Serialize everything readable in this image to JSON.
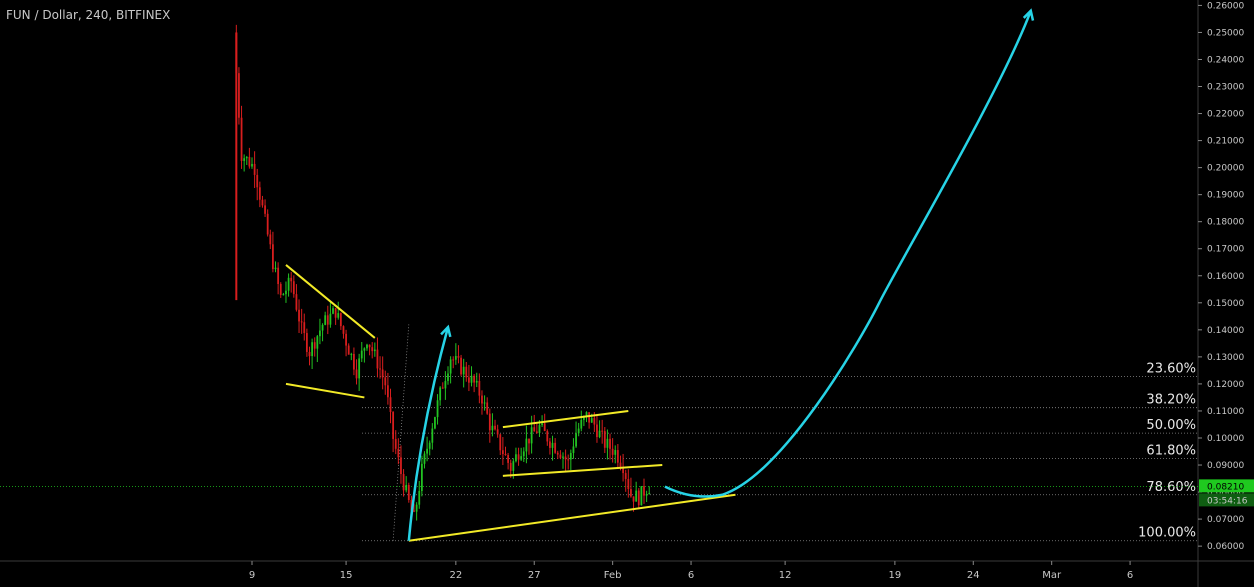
{
  "header": {
    "title": "FUN / Dollar, 240, BITFINEX"
  },
  "colors": {
    "background": "#000000",
    "up": "#22c322",
    "down": "#d81e1e",
    "trendline": "#f2ea27",
    "projection": "#27d3e6",
    "current_price": "#1fc91f",
    "fib": "#8a8a8a",
    "axis_text": "#c8c8c8"
  },
  "current_price": {
    "value": 0.0821,
    "label": "0.08210",
    "countdown": "03:54:16"
  },
  "chart_data": {
    "type": "candlestick",
    "title": "FUN / Dollar, 240, BITFINEX",
    "x_ticks": [
      "9",
      "15",
      "22",
      "27",
      "Feb",
      "6",
      "12",
      "19",
      "24",
      "Mar",
      "6"
    ],
    "y_ticks": [
      "0.06000",
      "0.07000",
      "0.08000",
      "0.09000",
      "0.10000",
      "0.11000",
      "0.12000",
      "0.13000",
      "0.14000",
      "0.15000",
      "0.16000",
      "0.17000",
      "0.18000",
      "0.19000",
      "0.20000",
      "0.21000",
      "0.22000",
      "0.23000",
      "0.24000",
      "0.25000",
      "0.26000"
    ],
    "ylim": [
      0.0545,
      0.262
    ],
    "grid": false,
    "fib_levels": [
      {
        "label": "23.60%",
        "price": 0.1228
      },
      {
        "label": "38.20%",
        "price": 0.1112
      },
      {
        "label": "50.00%",
        "price": 0.1018
      },
      {
        "label": "61.80%",
        "price": 0.0924
      },
      {
        "label": "78.60%",
        "price": 0.079
      },
      {
        "label": "100.00%",
        "price": 0.062
      }
    ],
    "candle_path": [
      [
        "2018-01-08T00:00",
        0.25
      ],
      [
        "2018-01-08T12:00",
        0.205
      ],
      [
        "2018-01-09T08:00",
        0.2
      ],
      [
        "2018-01-09T20:00",
        0.185
      ],
      [
        "2018-01-10T12:00",
        0.165
      ],
      [
        "2018-01-11T00:00",
        0.152
      ],
      [
        "2018-01-11T16:00",
        0.158
      ],
      [
        "2018-01-12T08:00",
        0.14
      ],
      [
        "2018-01-12T20:00",
        0.132
      ],
      [
        "2018-01-13T16:00",
        0.142
      ],
      [
        "2018-01-14T12:00",
        0.147
      ],
      [
        "2018-01-15T08:00",
        0.133
      ],
      [
        "2018-01-15T20:00",
        0.125
      ],
      [
        "2018-01-16T12:00",
        0.137
      ],
      [
        "2018-01-17T04:00",
        0.128
      ],
      [
        "2018-01-17T16:00",
        0.12
      ],
      [
        "2018-01-18T04:00",
        0.1
      ],
      [
        "2018-01-18T16:00",
        0.087
      ],
      [
        "2018-01-19T04:00",
        0.076
      ],
      [
        "2018-01-19T12:00",
        0.07
      ],
      [
        "2018-01-20T00:00",
        0.088
      ],
      [
        "2018-01-20T16:00",
        0.105
      ],
      [
        "2018-01-21T08:00",
        0.12
      ],
      [
        "2018-01-21T20:00",
        0.13
      ],
      [
        "2018-01-22T16:00",
        0.125
      ],
      [
        "2018-01-23T08:00",
        0.12
      ],
      [
        "2018-01-23T20:00",
        0.115
      ],
      [
        "2018-01-24T08:00",
        0.105
      ],
      [
        "2018-01-25T00:00",
        0.097
      ],
      [
        "2018-01-25T16:00",
        0.089
      ],
      [
        "2018-01-26T04:00",
        0.095
      ],
      [
        "2018-01-26T20:00",
        0.1
      ],
      [
        "2018-01-27T12:00",
        0.104
      ],
      [
        "2018-01-28T04:00",
        0.099
      ],
      [
        "2018-01-28T20:00",
        0.095
      ],
      [
        "2018-01-29T08:00",
        0.091
      ],
      [
        "2018-01-29T20:00",
        0.102
      ],
      [
        "2018-01-30T12:00",
        0.108
      ],
      [
        "2018-01-31T00:00",
        0.105
      ],
      [
        "2018-01-31T16:00",
        0.098
      ],
      [
        "2018-02-01T08:00",
        0.095
      ],
      [
        "2018-02-01T20:00",
        0.09
      ],
      [
        "2018-02-02T08:00",
        0.079
      ],
      [
        "2018-02-02T20:00",
        0.078
      ],
      [
        "2018-02-03T08:00",
        0.0815
      ],
      [
        "2018-02-03T12:00",
        0.0821
      ]
    ],
    "annotations": {
      "trendlines": [
        {
          "from": [
            "2018-01-11T04:00",
            0.164
          ],
          "to": [
            "2018-01-16T20:00",
            0.137
          ]
        },
        {
          "from": [
            "2018-01-11T04:00",
            0.12
          ],
          "to": [
            "2018-01-16T04:00",
            0.115
          ]
        },
        {
          "from": [
            "2018-01-25T00:00",
            0.104
          ],
          "to": [
            "2018-02-02T00:00",
            0.11
          ]
        },
        {
          "from": [
            "2018-01-25T00:00",
            0.086
          ],
          "to": [
            "2018-02-04T04:00",
            0.09
          ]
        },
        {
          "from": [
            "2018-01-19T00:00",
            0.062
          ],
          "to": [
            "2018-02-08T20:00",
            0.079
          ]
        }
      ],
      "projection_arrows": [
        {
          "points": [
            [
              "2018-01-19T00:00",
              0.062
            ],
            [
              "2018-01-21T12:00",
              0.141
            ]
          ]
        },
        {
          "points": [
            [
              "2018-02-04T08:00",
              0.082
            ],
            [
              "2018-02-08T00:00",
              0.079
            ],
            [
              "2018-02-18T00:00",
              0.15
            ],
            [
              "2018-02-27T16:00",
              0.258
            ]
          ]
        }
      ],
      "dotted_guides": [
        {
          "from": [
            "2018-01-18T00:00",
            0.062
          ],
          "to": [
            "2018-01-19T00:00",
            0.142
          ]
        }
      ]
    }
  }
}
